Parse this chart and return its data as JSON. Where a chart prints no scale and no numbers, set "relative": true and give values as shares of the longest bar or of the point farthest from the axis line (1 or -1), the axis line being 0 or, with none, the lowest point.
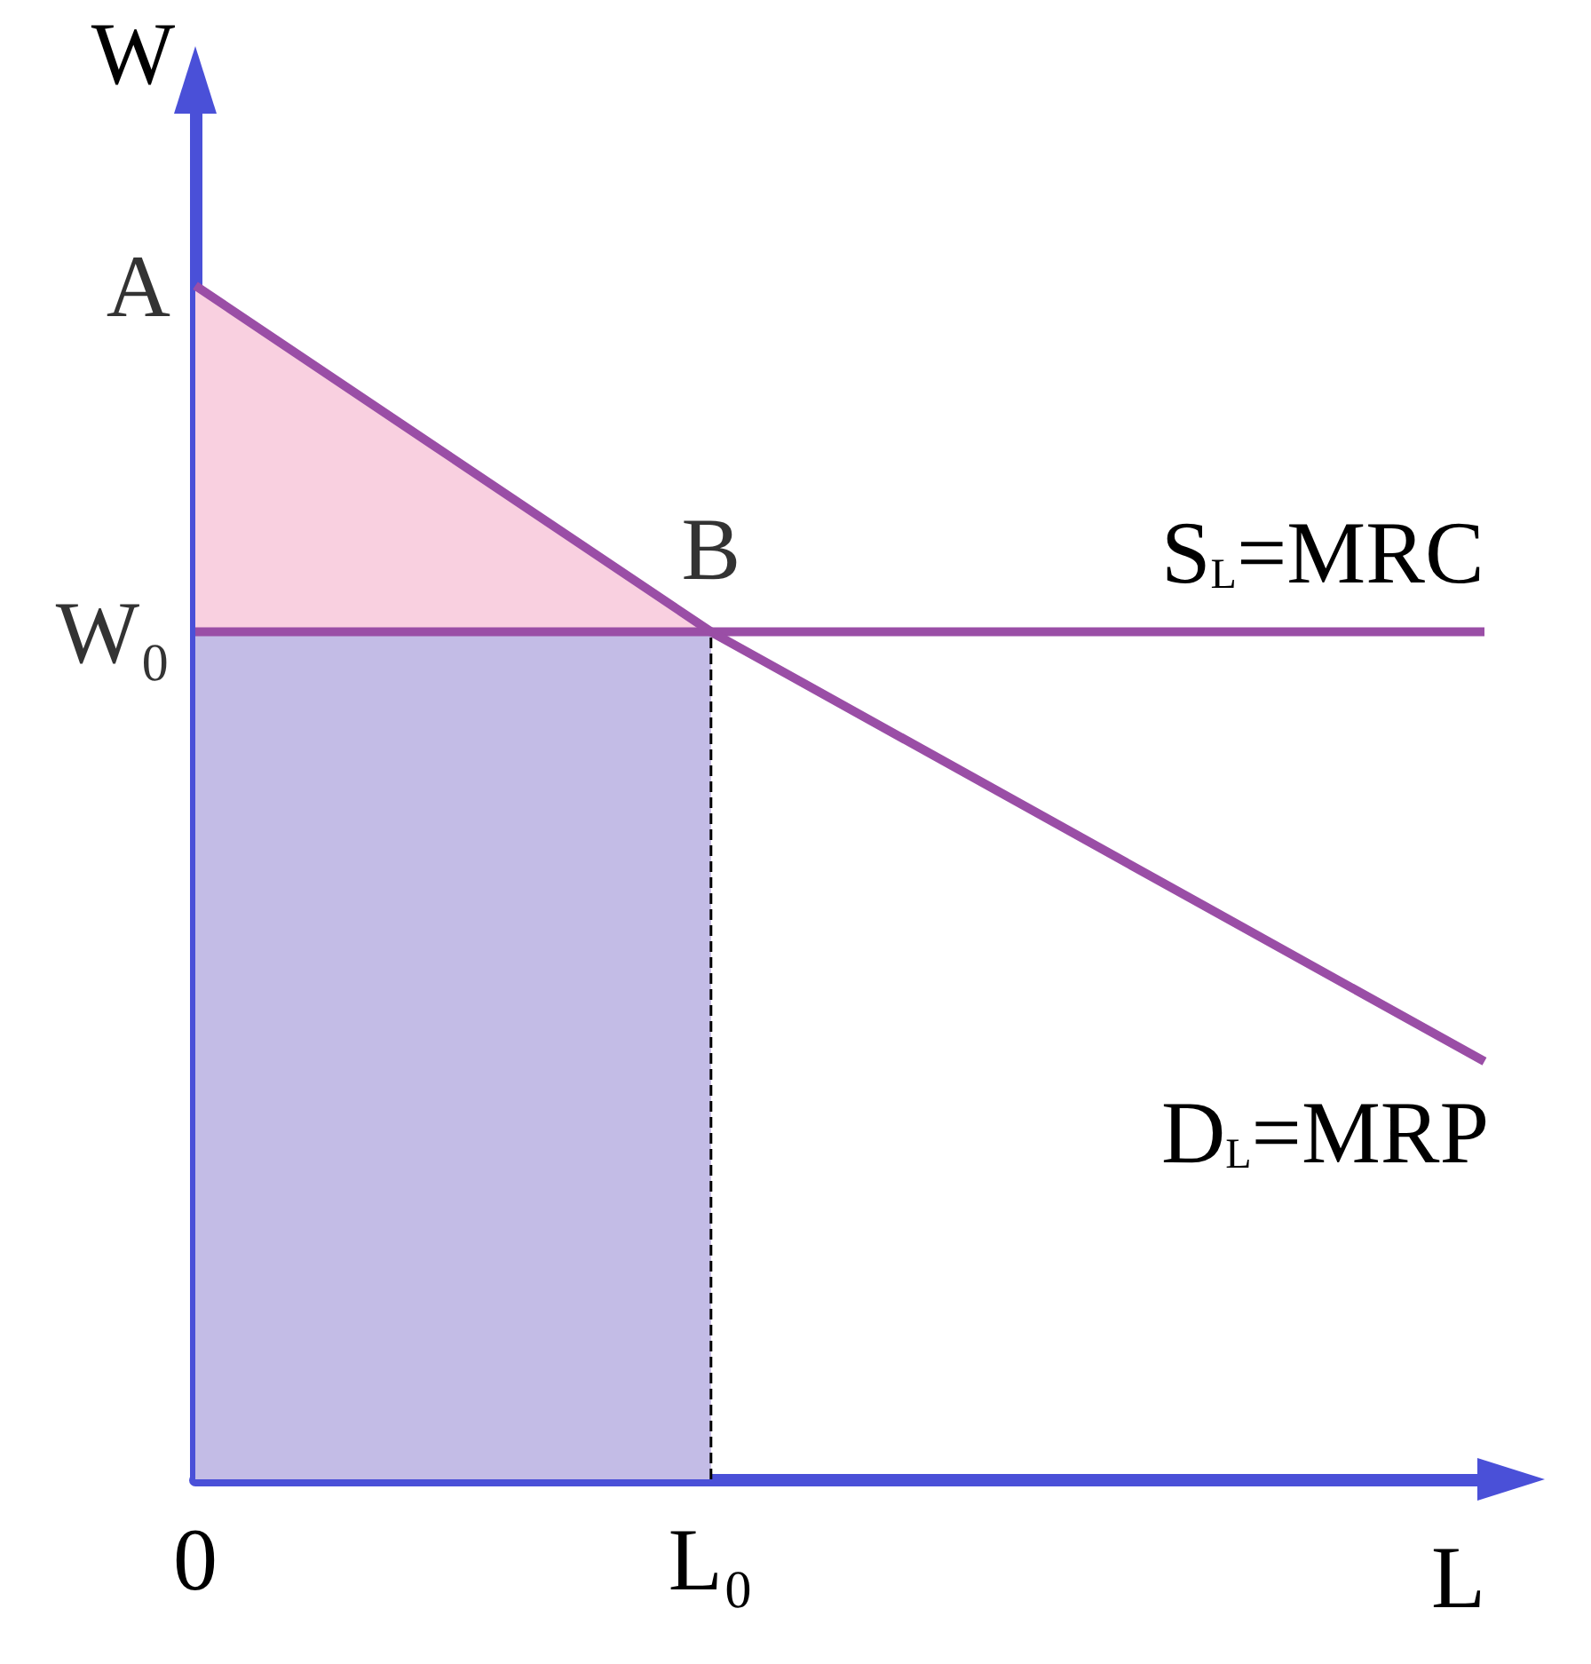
{
  "chart_data": {
    "type": "line",
    "relative": true,
    "xlabel": "L",
    "ylabel": "W",
    "categories": [
      "0",
      null,
      null,
      null,
      "L₀",
      null,
      null,
      null,
      null,
      null,
      null
    ],
    "series": [
      {
        "type": "area",
        "color": "#f9d0e0",
        "values": [
          1,
          null,
          null,
          null,
          0.71,
          null,
          null,
          null,
          null,
          null,
          null
        ]
      },
      {
        "type": "area",
        "color": "#c3bce6",
        "values": [
          0.71,
          null,
          null,
          null,
          0.71,
          null,
          null,
          null,
          null,
          null,
          null
        ]
      },
      {
        "color": "#000000",
        "line_style": "dashed",
        "x": [
          "L₀",
          "L₀"
        ],
        "values": [
          0,
          0.71
        ]
      },
      {
        "name": "S$_{L}$=MRC",
        "color": "#9a4ea6",
        "values": [
          0.71,
          null,
          null,
          null,
          0.71,
          null,
          null,
          null,
          null,
          null,
          0.71
        ]
      },
      {
        "name": "D$_{L}$=MRP",
        "color": "#9a4ea6",
        "values": [
          1,
          null,
          null,
          null,
          0.71,
          null,
          null,
          null,
          null,
          null,
          0.35
        ]
      }
    ],
    "annotations": [
      {
        "text": "A",
        "x": "0",
        "y": 1
      },
      {
        "text": "W₀",
        "x": "0",
        "y": 0.71
      },
      {
        "text": "B",
        "x": "L₀",
        "y": 0.71
      }
    ],
    "grid": false,
    "legend": false,
    "marker": "none"
  }
}
